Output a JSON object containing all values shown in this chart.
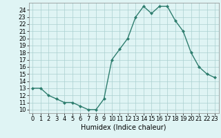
{
  "x": [
    0,
    1,
    2,
    3,
    4,
    5,
    6,
    7,
    8,
    9,
    10,
    11,
    12,
    13,
    14,
    15,
    16,
    17,
    18,
    19,
    20,
    21,
    22,
    23
  ],
  "y": [
    13.0,
    13.0,
    12.0,
    11.5,
    11.0,
    11.0,
    10.5,
    10.0,
    10.0,
    11.5,
    17.0,
    18.5,
    20.0,
    23.0,
    24.5,
    23.5,
    24.5,
    24.5,
    22.5,
    21.0,
    18.0,
    16.0,
    15.0,
    14.5
  ],
  "line_color": "#2e7d6e",
  "marker": "D",
  "marker_size": 2,
  "line_width": 1.0,
  "bg_color": "#dff4f4",
  "grid_color": "#aacfcf",
  "xlabel": "Humidex (Indice chaleur)",
  "xlabel_fontsize": 7,
  "tick_fontsize": 6,
  "xlim": [
    -0.5,
    23.5
  ],
  "ylim": [
    9.5,
    25.0
  ],
  "yticks": [
    10,
    11,
    12,
    13,
    14,
    15,
    16,
    17,
    18,
    19,
    20,
    21,
    22,
    23,
    24
  ],
  "xticks": [
    0,
    1,
    2,
    3,
    4,
    5,
    6,
    7,
    8,
    9,
    10,
    11,
    12,
    13,
    14,
    15,
    16,
    17,
    18,
    19,
    20,
    21,
    22,
    23
  ]
}
